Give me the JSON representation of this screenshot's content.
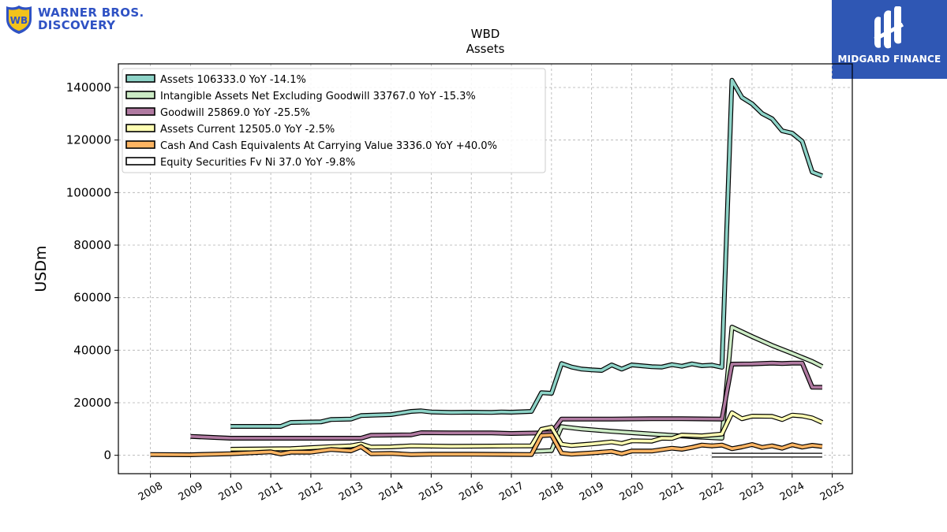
{
  "logos": {
    "left": {
      "line1": "WARNER BROS.",
      "line2": "DISCOVERY",
      "color": "#2f52c4"
    },
    "right": {
      "name": "MIDGARD FINANCE",
      "background": "#2f57b4"
    }
  },
  "chart_data": {
    "type": "line",
    "title": "WBD",
    "subtitle": "Assets",
    "xlabel": "",
    "ylabel": "USDm",
    "xlim": [
      2007.2,
      2025.5
    ],
    "ylim": [
      -7000,
      149000
    ],
    "grid": true,
    "legend_position": "top-left",
    "x_ticks": [
      2008,
      2009,
      2010,
      2011,
      2012,
      2013,
      2014,
      2015,
      2016,
      2017,
      2018,
      2019,
      2020,
      2021,
      2022,
      2023,
      2024,
      2025
    ],
    "x_tick_labels": [
      "2008",
      "2009",
      "2010",
      "2011",
      "2012",
      "2013",
      "2014",
      "2015",
      "2016",
      "2017",
      "2018",
      "2019",
      "2020",
      "2021",
      "2022",
      "2023",
      "2024",
      "2025"
    ],
    "y_ticks": [
      0,
      20000,
      40000,
      60000,
      80000,
      100000,
      120000,
      140000
    ],
    "y_tick_labels": [
      "0",
      "20000",
      "40000",
      "60000",
      "80000",
      "100000",
      "120000",
      "140000"
    ],
    "series": [
      {
        "name": "Assets",
        "legend": "Assets  106333.0 YoY -14.1%",
        "color": "#8dd3c7",
        "points": [
          [
            2010.0,
            11000
          ],
          [
            2011.25,
            11000
          ],
          [
            2011.5,
            12500
          ],
          [
            2012.25,
            12700
          ],
          [
            2012.5,
            13600
          ],
          [
            2013.0,
            13800
          ],
          [
            2013.25,
            15100
          ],
          [
            2014.0,
            15500
          ],
          [
            2014.5,
            16700
          ],
          [
            2014.75,
            16900
          ],
          [
            2015.0,
            16500
          ],
          [
            2015.5,
            16300
          ],
          [
            2016.0,
            16400
          ],
          [
            2016.5,
            16300
          ],
          [
            2016.75,
            16500
          ],
          [
            2017.0,
            16400
          ],
          [
            2017.5,
            16700
          ],
          [
            2017.75,
            23800
          ],
          [
            2018.0,
            23600
          ],
          [
            2018.25,
            34900
          ],
          [
            2018.5,
            33600
          ],
          [
            2018.75,
            32800
          ],
          [
            2019.0,
            32500
          ],
          [
            2019.25,
            32300
          ],
          [
            2019.5,
            34400
          ],
          [
            2019.75,
            32800
          ],
          [
            2020.0,
            34400
          ],
          [
            2020.5,
            33700
          ],
          [
            2020.75,
            33600
          ],
          [
            2021.0,
            34500
          ],
          [
            2021.25,
            33900
          ],
          [
            2021.5,
            34800
          ],
          [
            2021.75,
            34100
          ],
          [
            2022.0,
            34300
          ],
          [
            2022.25,
            33500
          ],
          [
            2022.5,
            142800
          ],
          [
            2022.75,
            136200
          ],
          [
            2023.0,
            133800
          ],
          [
            2023.25,
            130100
          ],
          [
            2023.5,
            128100
          ],
          [
            2023.75,
            123500
          ],
          [
            2024.0,
            122600
          ],
          [
            2024.25,
            119500
          ],
          [
            2024.5,
            107800
          ],
          [
            2024.75,
            106333
          ]
        ]
      },
      {
        "name": "Intangible Assets Net Excluding Goodwill",
        "legend": "Intangible Assets Net Excluding Goodwill  33767.0 YoY -15.3%",
        "color": "#ccebc5",
        "points": [
          [
            2017.5,
            1500
          ],
          [
            2017.75,
            1600
          ],
          [
            2018.0,
            1800
          ],
          [
            2018.25,
            10900
          ],
          [
            2018.75,
            10000
          ],
          [
            2019.5,
            9100
          ],
          [
            2020.5,
            8100
          ],
          [
            2021.5,
            7100
          ],
          [
            2022.25,
            6500
          ],
          [
            2022.5,
            48800
          ],
          [
            2023.0,
            45200
          ],
          [
            2023.5,
            41800
          ],
          [
            2024.0,
            38800
          ],
          [
            2024.5,
            35700
          ],
          [
            2024.75,
            33767
          ]
        ]
      },
      {
        "name": "Goodwill",
        "legend": "Goodwill  25869.0 YoY -25.5%",
        "color": "#b07aa1",
        "points": [
          [
            2009.0,
            7200
          ],
          [
            2010.0,
            6500
          ],
          [
            2011.0,
            6500
          ],
          [
            2013.25,
            6500
          ],
          [
            2013.5,
            7600
          ],
          [
            2014.5,
            7800
          ],
          [
            2014.75,
            8600
          ],
          [
            2015.5,
            8500
          ],
          [
            2016.5,
            8500
          ],
          [
            2017.0,
            8300
          ],
          [
            2017.75,
            8500
          ],
          [
            2018.0,
            8600
          ],
          [
            2018.25,
            13800
          ],
          [
            2018.75,
            13800
          ],
          [
            2019.5,
            13800
          ],
          [
            2020.5,
            13900
          ],
          [
            2021.25,
            13900
          ],
          [
            2022.25,
            13800
          ],
          [
            2022.5,
            34700
          ],
          [
            2023.0,
            34800
          ],
          [
            2023.5,
            35100
          ],
          [
            2023.75,
            34900
          ],
          [
            2024.0,
            35100
          ],
          [
            2024.25,
            35100
          ],
          [
            2024.5,
            25900
          ],
          [
            2024.75,
            25869
          ]
        ]
      },
      {
        "name": "Assets Current",
        "legend": "Assets Current  12505.0 YoY -2.5%",
        "color": "#ffffb3",
        "points": [
          [
            2010.0,
            2300
          ],
          [
            2011.5,
            2500
          ],
          [
            2012.5,
            3300
          ],
          [
            2013.0,
            3600
          ],
          [
            2013.25,
            4300
          ],
          [
            2013.5,
            3100
          ],
          [
            2014.0,
            3200
          ],
          [
            2014.5,
            3600
          ],
          [
            2015.5,
            3400
          ],
          [
            2016.5,
            3500
          ],
          [
            2017.5,
            3600
          ],
          [
            2017.75,
            9900
          ],
          [
            2018.0,
            10700
          ],
          [
            2018.25,
            4200
          ],
          [
            2018.5,
            3700
          ],
          [
            2019.0,
            4300
          ],
          [
            2019.5,
            5100
          ],
          [
            2019.75,
            4500
          ],
          [
            2020.0,
            5500
          ],
          [
            2020.5,
            5400
          ],
          [
            2020.75,
            6500
          ],
          [
            2021.0,
            6400
          ],
          [
            2021.25,
            7700
          ],
          [
            2021.75,
            7400
          ],
          [
            2022.25,
            8100
          ],
          [
            2022.5,
            16200
          ],
          [
            2022.75,
            13900
          ],
          [
            2023.0,
            14900
          ],
          [
            2023.5,
            14800
          ],
          [
            2023.75,
            13600
          ],
          [
            2024.0,
            15300
          ],
          [
            2024.25,
            15000
          ],
          [
            2024.5,
            14200
          ],
          [
            2024.75,
            12505
          ]
        ]
      },
      {
        "name": "Cash And Cash Equivalents At Carrying Value",
        "legend": "Cash And Cash Equivalents At Carrying Value  3336.0 YoY +40.0%",
        "color": "#fdb462",
        "points": [
          [
            2008.0,
            300
          ],
          [
            2009.0,
            200
          ],
          [
            2010.0,
            600
          ],
          [
            2011.0,
            1300
          ],
          [
            2011.25,
            500
          ],
          [
            2011.5,
            1200
          ],
          [
            2012.0,
            1200
          ],
          [
            2012.5,
            2200
          ],
          [
            2013.0,
            1700
          ],
          [
            2013.25,
            3300
          ],
          [
            2013.5,
            600
          ],
          [
            2014.0,
            700
          ],
          [
            2014.5,
            300
          ],
          [
            2015.0,
            400
          ],
          [
            2016.0,
            400
          ],
          [
            2017.5,
            300
          ],
          [
            2017.75,
            7500
          ],
          [
            2018.0,
            7700
          ],
          [
            2018.25,
            800
          ],
          [
            2018.5,
            400
          ],
          [
            2019.0,
            900
          ],
          [
            2019.5,
            1500
          ],
          [
            2019.75,
            600
          ],
          [
            2020.0,
            1600
          ],
          [
            2020.5,
            1600
          ],
          [
            2021.0,
            2700
          ],
          [
            2021.25,
            2300
          ],
          [
            2021.5,
            3000
          ],
          [
            2021.75,
            3900
          ],
          [
            2022.0,
            3600
          ],
          [
            2022.25,
            3900
          ],
          [
            2022.5,
            2500
          ],
          [
            2022.75,
            3200
          ],
          [
            2023.0,
            4100
          ],
          [
            2023.25,
            3000
          ],
          [
            2023.5,
            3600
          ],
          [
            2023.75,
            2700
          ],
          [
            2024.0,
            4000
          ],
          [
            2024.25,
            3100
          ],
          [
            2024.5,
            3800
          ],
          [
            2024.75,
            3336
          ]
        ]
      },
      {
        "name": "Equity Securities Fv Ni",
        "legend": "Equity Securities Fv Ni  37.0 YoY -9.8%",
        "color": "#ffffff",
        "points": [
          [
            2022.0,
            40
          ],
          [
            2024.75,
            37
          ]
        ]
      }
    ]
  }
}
